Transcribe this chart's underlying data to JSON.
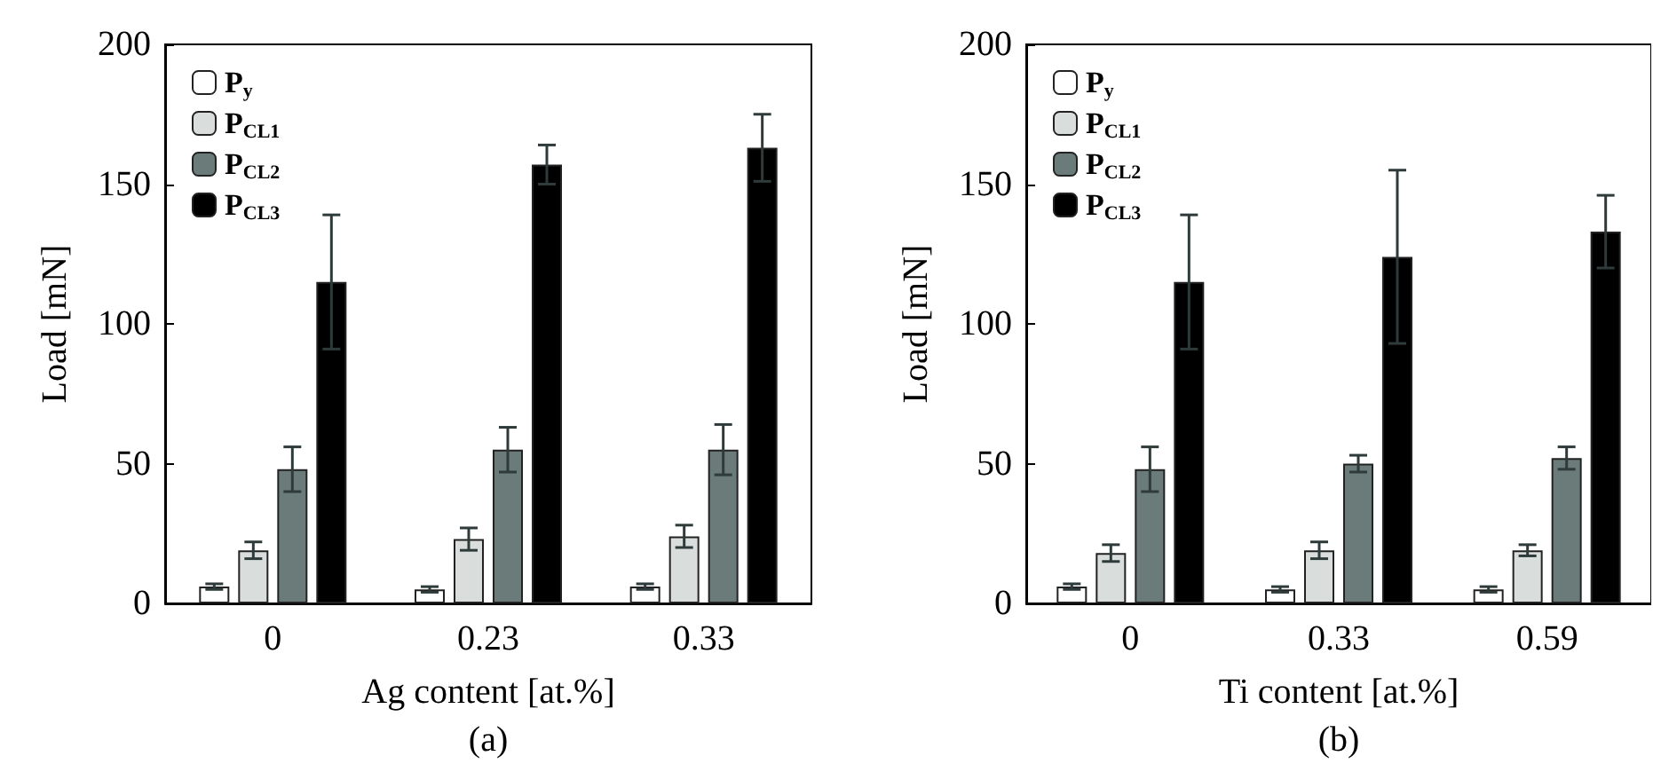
{
  "chart_data": [
    {
      "type": "bar",
      "xlabel": "Ag content [at.%]",
      "ylabel": "Load [mN]",
      "annotations": [
        "(a)"
      ],
      "categories": [
        "0",
        "0.23",
        "0.33"
      ],
      "ylim": [
        0,
        200
      ],
      "yticks": [
        0,
        50,
        100,
        150,
        200
      ],
      "legend": "top left",
      "grid": false,
      "series": [
        {
          "name": "P$_{y}$",
          "color": "#ffffff",
          "values": [
            6,
            5,
            6
          ],
          "errors": [
            1,
            1,
            1
          ]
        },
        {
          "name": "P$_{CL1}$",
          "color": "#d9dedd",
          "values": [
            19,
            23,
            24
          ],
          "errors": [
            3,
            4,
            4
          ]
        },
        {
          "name": "P$_{CL2}$",
          "color": "#6b7b7a",
          "values": [
            48,
            55,
            55
          ],
          "errors": [
            8,
            8,
            9
          ]
        },
        {
          "name": "P$_{CL3}$",
          "color": "#000000",
          "values": [
            115,
            157,
            163
          ],
          "errors": [
            24,
            7,
            12
          ]
        }
      ]
    },
    {
      "type": "bar",
      "xlabel": "Ti content [at.%]",
      "ylabel": "Load [mN]",
      "annotations": [
        "(b)"
      ],
      "categories": [
        "0",
        "0.33",
        "0.59"
      ],
      "ylim": [
        0,
        200
      ],
      "yticks": [
        0,
        50,
        100,
        150,
        200
      ],
      "legend": "top left",
      "grid": false,
      "series": [
        {
          "name": "P$_{y}$",
          "color": "#ffffff",
          "values": [
            6,
            5,
            5
          ],
          "errors": [
            1,
            1,
            1
          ]
        },
        {
          "name": "P$_{CL1}$",
          "color": "#d9dedd",
          "values": [
            18,
            19,
            19
          ],
          "errors": [
            3,
            3,
            2
          ]
        },
        {
          "name": "P$_{CL2}$",
          "color": "#6b7b7a",
          "values": [
            48,
            50,
            52
          ],
          "errors": [
            8,
            3,
            4
          ]
        },
        {
          "name": "P$_{CL3}$",
          "color": "#000000",
          "values": [
            115,
            124,
            133
          ],
          "errors": [
            24,
            31,
            13
          ]
        }
      ]
    }
  ]
}
